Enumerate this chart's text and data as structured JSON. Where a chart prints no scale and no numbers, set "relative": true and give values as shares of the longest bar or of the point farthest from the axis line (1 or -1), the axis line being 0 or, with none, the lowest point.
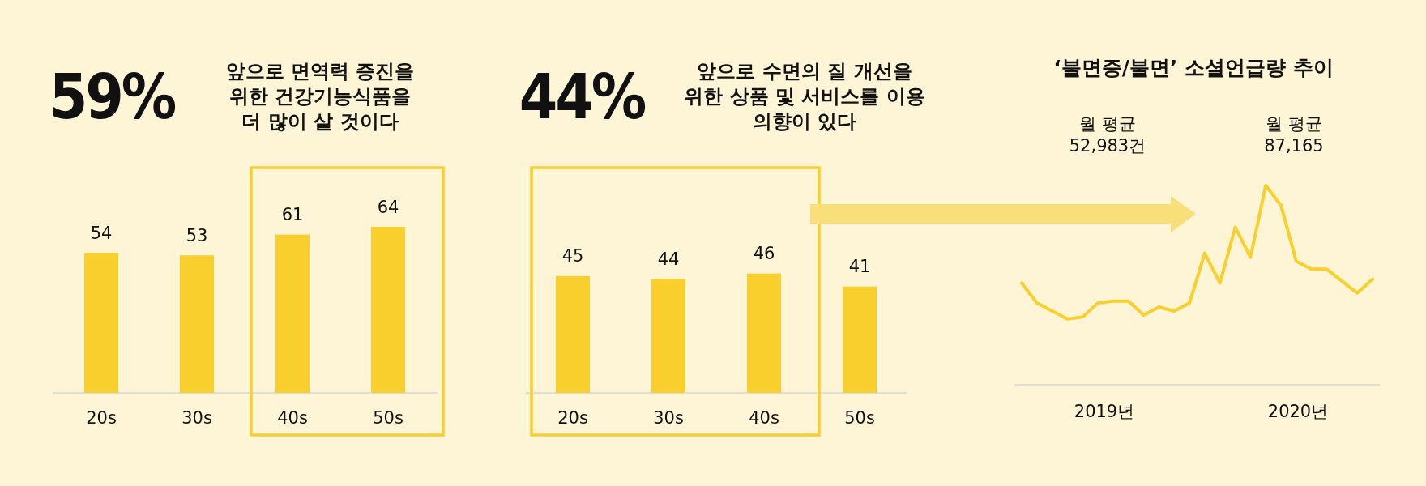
{
  "chart_data": [
    {
      "type": "bar",
      "title": "59%",
      "subtitle": "앞으로 면역력 증진을 위한 건강기능식품을 더 많이 살 것이다",
      "categories": [
        "20s",
        "30s",
        "40s",
        "50s"
      ],
      "values": [
        54,
        53,
        61,
        64
      ],
      "color": "#f8cf2c",
      "data_labels": true
    },
    {
      "type": "bar",
      "title": "44%",
      "subtitle": "앞으로 수면의 질 개선을 위한 상품 및 서비스를 이용 의향이 있다",
      "categories": [
        "20s",
        "30s",
        "40s",
        "50s"
      ],
      "values": [
        45,
        44,
        46,
        41
      ],
      "color": "#f8cf2c",
      "data_labels": true
    },
    {
      "type": "line",
      "title": "‘불면증/불면’ 소셜언급량 추이",
      "categories": [
        null,
        null,
        null,
        null,
        null,
        null,
        null,
        null,
        null,
        null,
        null,
        null,
        null,
        null,
        null,
        null,
        null,
        null,
        null,
        null,
        null,
        null,
        null,
        null
      ],
      "values": [
        0.51,
        0.41,
        0.37,
        0.33,
        0.34,
        0.41,
        0.42,
        0.42,
        0.35,
        0.39,
        0.37,
        0.41,
        0.66,
        0.51,
        0.79,
        0.64,
        1,
        0.9,
        0.62,
        0.58,
        0.58,
        0.52,
        0.46,
        0.53
      ],
      "relative": true,
      "color": "#f8cf2c",
      "annotations": [
        "월 평균 52,983건",
        "월 평균 87,165",
        "2019년",
        "2020년"
      ]
    }
  ]
}
